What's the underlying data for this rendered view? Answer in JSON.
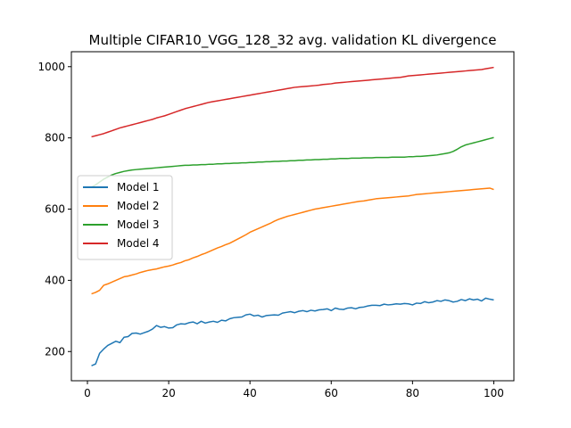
{
  "chart_data": {
    "type": "line",
    "title": "Multiple CIFAR10_VGG_128_32 avg. validation KL divergence",
    "xlabel": "",
    "ylabel": "",
    "xlim": [
      -3.95,
      104.95
    ],
    "ylim": [
      118,
      1042
    ],
    "x_ticks": [
      0,
      20,
      40,
      60,
      80,
      100
    ],
    "y_ticks": [
      200,
      400,
      600,
      800,
      1000
    ],
    "grid": false,
    "legend_position": "center-left",
    "series": [
      {
        "name": "Model 1",
        "color": "#1f77b4",
        "x": [
          1,
          2,
          3,
          4,
          5,
          6,
          7,
          8,
          9,
          10,
          11,
          12,
          13,
          14,
          15,
          16,
          17,
          18,
          19,
          20,
          21,
          22,
          23,
          24,
          25,
          26,
          27,
          28,
          29,
          30,
          31,
          32,
          33,
          34,
          35,
          36,
          37,
          38,
          39,
          40,
          41,
          42,
          43,
          44,
          45,
          46,
          47,
          48,
          49,
          50,
          51,
          52,
          53,
          54,
          55,
          56,
          57,
          58,
          59,
          60,
          61,
          62,
          63,
          64,
          65,
          66,
          67,
          68,
          69,
          70,
          71,
          72,
          73,
          74,
          75,
          76,
          77,
          78,
          79,
          80,
          81,
          82,
          83,
          84,
          85,
          86,
          87,
          88,
          89,
          90,
          91,
          92,
          93,
          94,
          95,
          96,
          97,
          98,
          99,
          100
        ],
        "values": [
          160,
          165,
          195,
          207,
          217,
          223,
          229,
          225,
          240,
          242,
          251,
          252,
          249,
          253,
          257,
          263,
          273,
          268,
          270,
          266,
          267,
          275,
          278,
          277,
          281,
          283,
          278,
          285,
          280,
          283,
          285,
          282,
          288,
          286,
          292,
          295,
          296,
          297,
          303,
          305,
          300,
          302,
          297,
          301,
          302,
          303,
          302,
          308,
          310,
          312,
          309,
          313,
          315,
          312,
          316,
          314,
          317,
          318,
          320,
          315,
          322,
          319,
          318,
          322,
          323,
          320,
          324,
          325,
          328,
          330,
          330,
          329,
          333,
          331,
          332,
          334,
          333,
          335,
          334,
          331,
          336,
          335,
          340,
          337,
          339,
          343,
          341,
          345,
          343,
          339,
          341,
          346,
          343,
          348,
          345,
          347,
          342,
          350,
          347,
          345
        ]
      },
      {
        "name": "Model 2",
        "color": "#ff7f0e",
        "x": [
          1,
          2,
          3,
          4,
          5,
          6,
          7,
          8,
          9,
          10,
          11,
          12,
          13,
          14,
          15,
          16,
          17,
          18,
          19,
          20,
          21,
          22,
          23,
          24,
          25,
          26,
          27,
          28,
          29,
          30,
          31,
          32,
          33,
          34,
          35,
          36,
          37,
          38,
          39,
          40,
          41,
          42,
          43,
          44,
          45,
          46,
          47,
          48,
          49,
          50,
          51,
          52,
          53,
          54,
          55,
          56,
          57,
          58,
          59,
          60,
          61,
          62,
          63,
          64,
          65,
          66,
          67,
          68,
          69,
          70,
          71,
          72,
          73,
          74,
          75,
          76,
          77,
          78,
          79,
          80,
          81,
          82,
          83,
          84,
          85,
          86,
          87,
          88,
          89,
          90,
          91,
          92,
          93,
          94,
          95,
          96,
          97,
          98,
          99,
          100
        ],
        "values": [
          362,
          366,
          372,
          386,
          390,
          395,
          400,
          405,
          410,
          412,
          415,
          418,
          422,
          425,
          428,
          430,
          432,
          435,
          438,
          440,
          443,
          447,
          450,
          455,
          458,
          463,
          467,
          472,
          476,
          481,
          486,
          491,
          495,
          500,
          504,
          510,
          516,
          522,
          528,
          535,
          540,
          545,
          550,
          555,
          560,
          566,
          571,
          575,
          579,
          582,
          585,
          588,
          591,
          594,
          597,
          600,
          602,
          604,
          606,
          608,
          610,
          612,
          614,
          616,
          618,
          620,
          622,
          623,
          625,
          627,
          629,
          630,
          631,
          632,
          633,
          634,
          635,
          636,
          637,
          639,
          641,
          642,
          643,
          644,
          645,
          646,
          647,
          648,
          649,
          650,
          651,
          652,
          653,
          654,
          655,
          656,
          657,
          658,
          659,
          655
        ]
      },
      {
        "name": "Model 3",
        "color": "#2ca02c",
        "x": [
          1,
          2,
          3,
          4,
          5,
          6,
          7,
          8,
          9,
          10,
          11,
          12,
          13,
          14,
          15,
          16,
          17,
          18,
          19,
          20,
          21,
          22,
          23,
          24,
          25,
          26,
          27,
          28,
          29,
          30,
          31,
          32,
          33,
          34,
          35,
          36,
          37,
          38,
          39,
          40,
          41,
          42,
          43,
          44,
          45,
          46,
          47,
          48,
          49,
          50,
          51,
          52,
          53,
          54,
          55,
          56,
          57,
          58,
          59,
          60,
          61,
          62,
          63,
          64,
          65,
          66,
          67,
          68,
          69,
          70,
          71,
          72,
          73,
          74,
          75,
          76,
          77,
          78,
          79,
          80,
          81,
          82,
          83,
          84,
          85,
          86,
          87,
          88,
          89,
          90,
          91,
          92,
          93,
          94,
          95,
          96,
          97,
          98,
          99,
          100
        ],
        "values": [
          662,
          668,
          676,
          684,
          690,
          696,
          700,
          703,
          706,
          708,
          710,
          711,
          712,
          713,
          714,
          715,
          716,
          717,
          718,
          719,
          720,
          721,
          722,
          723,
          723,
          724,
          724,
          725,
          725,
          726,
          726,
          727,
          727,
          728,
          728,
          729,
          729,
          730,
          730,
          731,
          731,
          732,
          732,
          733,
          733,
          734,
          734,
          735,
          735,
          736,
          736,
          737,
          737,
          738,
          738,
          739,
          739,
          740,
          740,
          741,
          741,
          742,
          742,
          742,
          743,
          743,
          743,
          744,
          744,
          744,
          745,
          745,
          745,
          745,
          746,
          746,
          746,
          746,
          747,
          747,
          748,
          748,
          749,
          750,
          751,
          752,
          754,
          756,
          758,
          762,
          768,
          775,
          780,
          783,
          786,
          789,
          792,
          795,
          798,
          801
        ]
      },
      {
        "name": "Model 4",
        "color": "#d62728",
        "x": [
          1,
          2,
          3,
          4,
          5,
          6,
          7,
          8,
          9,
          10,
          11,
          12,
          13,
          14,
          15,
          16,
          17,
          18,
          19,
          20,
          21,
          22,
          23,
          24,
          25,
          26,
          27,
          28,
          29,
          30,
          31,
          32,
          33,
          34,
          35,
          36,
          37,
          38,
          39,
          40,
          41,
          42,
          43,
          44,
          45,
          46,
          47,
          48,
          49,
          50,
          51,
          52,
          53,
          54,
          55,
          56,
          57,
          58,
          59,
          60,
          61,
          62,
          63,
          64,
          65,
          66,
          67,
          68,
          69,
          70,
          71,
          72,
          73,
          74,
          75,
          76,
          77,
          78,
          79,
          80,
          81,
          82,
          83,
          84,
          85,
          86,
          87,
          88,
          89,
          90,
          91,
          92,
          93,
          94,
          95,
          96,
          97,
          98,
          99,
          100
        ],
        "values": [
          803,
          806,
          809,
          812,
          816,
          820,
          824,
          828,
          831,
          834,
          837,
          840,
          843,
          846,
          849,
          852,
          856,
          859,
          862,
          866,
          870,
          874,
          878,
          882,
          885,
          888,
          891,
          894,
          897,
          900,
          902,
          904,
          906,
          908,
          910,
          912,
          914,
          916,
          918,
          920,
          922,
          924,
          926,
          928,
          930,
          932,
          934,
          936,
          938,
          940,
          942,
          943,
          944,
          945,
          946,
          947,
          948,
          950,
          951,
          952,
          954,
          955,
          956,
          957,
          958,
          959,
          960,
          961,
          962,
          963,
          964,
          965,
          966,
          967,
          968,
          969,
          970,
          972,
          974,
          975,
          976,
          977,
          978,
          979,
          980,
          981,
          982,
          983,
          984,
          985,
          986,
          987,
          988,
          989,
          990,
          991,
          992,
          994,
          996,
          998
        ]
      }
    ]
  }
}
